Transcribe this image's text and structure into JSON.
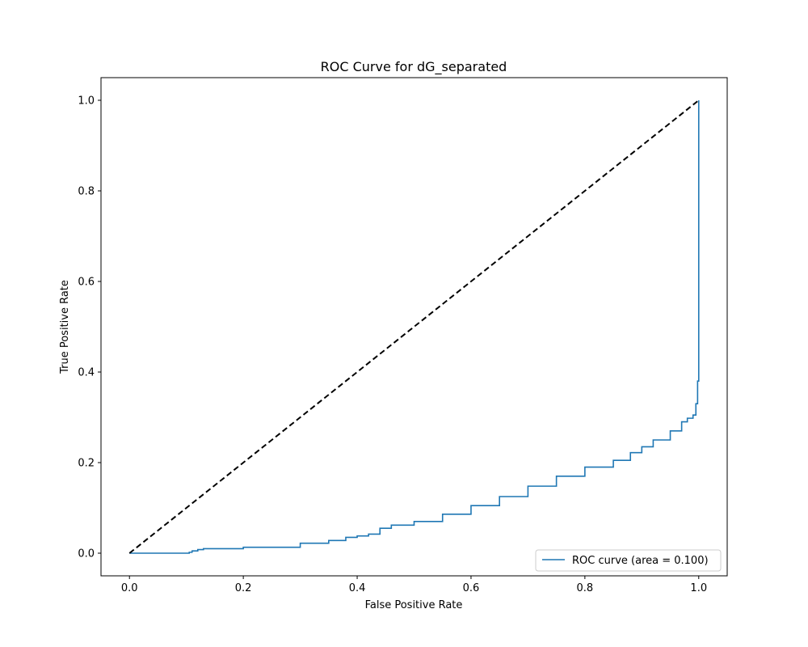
{
  "chart_data": {
    "type": "line",
    "title": "ROC Curve for dG_separated",
    "xlabel": "False Positive Rate",
    "ylabel": "True Positive Rate",
    "xlim": [
      -0.05,
      1.05
    ],
    "ylim": [
      -0.05,
      1.05
    ],
    "xticks": [
      "0.0",
      "0.2",
      "0.4",
      "0.6",
      "0.8",
      "1.0"
    ],
    "yticks": [
      "0.0",
      "0.2",
      "0.4",
      "0.6",
      "0.8",
      "1.0"
    ],
    "xtick_values": [
      0.0,
      0.2,
      0.4,
      0.6,
      0.8,
      1.0
    ],
    "ytick_values": [
      0.0,
      0.2,
      0.4,
      0.6,
      0.8,
      1.0
    ],
    "grid": false,
    "legend_position": "lower-right",
    "series": [
      {
        "name": "ROC curve (area = 0.100)",
        "color": "#1f77b4",
        "style": "step",
        "x": [
          0.0,
          0.1,
          0.105,
          0.11,
          0.12,
          0.13,
          0.2,
          0.3,
          0.35,
          0.38,
          0.4,
          0.42,
          0.44,
          0.46,
          0.5,
          0.55,
          0.6,
          0.65,
          0.7,
          0.75,
          0.8,
          0.85,
          0.88,
          0.9,
          0.92,
          0.95,
          0.97,
          0.98,
          0.99,
          0.995,
          0.998,
          1.0,
          1.0,
          1.0
        ],
        "y": [
          0.0,
          0.0,
          0.002,
          0.005,
          0.008,
          0.01,
          0.013,
          0.022,
          0.028,
          0.035,
          0.038,
          0.042,
          0.055,
          0.062,
          0.07,
          0.086,
          0.105,
          0.125,
          0.148,
          0.17,
          0.19,
          0.205,
          0.222,
          0.235,
          0.25,
          0.27,
          0.29,
          0.298,
          0.305,
          0.33,
          0.38,
          0.43,
          0.61,
          1.0
        ]
      },
      {
        "name": "",
        "color": "#000000",
        "style": "dashed",
        "x": [
          0.0,
          1.0
        ],
        "y": [
          0.0,
          1.0
        ]
      }
    ]
  }
}
